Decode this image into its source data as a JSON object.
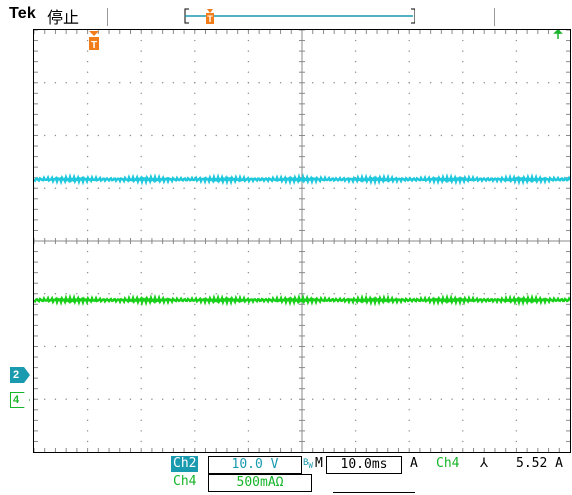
{
  "header": {
    "brand": "Tek",
    "run_state": "停止"
  },
  "channels": {
    "ch2": {
      "label": "Ch2",
      "scale": "10.0 V",
      "marker": "2",
      "color": "#1fc8dc",
      "level_fraction": 0.354
    },
    "ch4": {
      "label": "Ch4",
      "scale": "500mAΩ",
      "marker": "4",
      "color": "#18cf1a",
      "level_fraction": 0.64
    }
  },
  "status": {
    "bw_icon": "bw-limit-icon",
    "m_prefix": "M",
    "timebase": "10.0ms",
    "trigger_mode": "A",
    "trigger_source": "Ch4",
    "trigger_slope": "falling-edge-icon",
    "trigger_slope_glyph": "⅄",
    "trigger_level": "5.52 A"
  },
  "display": {
    "grid_divisions": {
      "horizontal": 10,
      "vertical": 8
    },
    "grid_color": "#8a8a8a",
    "trigger_marker_color": "#f07d1a",
    "trigger_marker_letter": "T"
  }
}
